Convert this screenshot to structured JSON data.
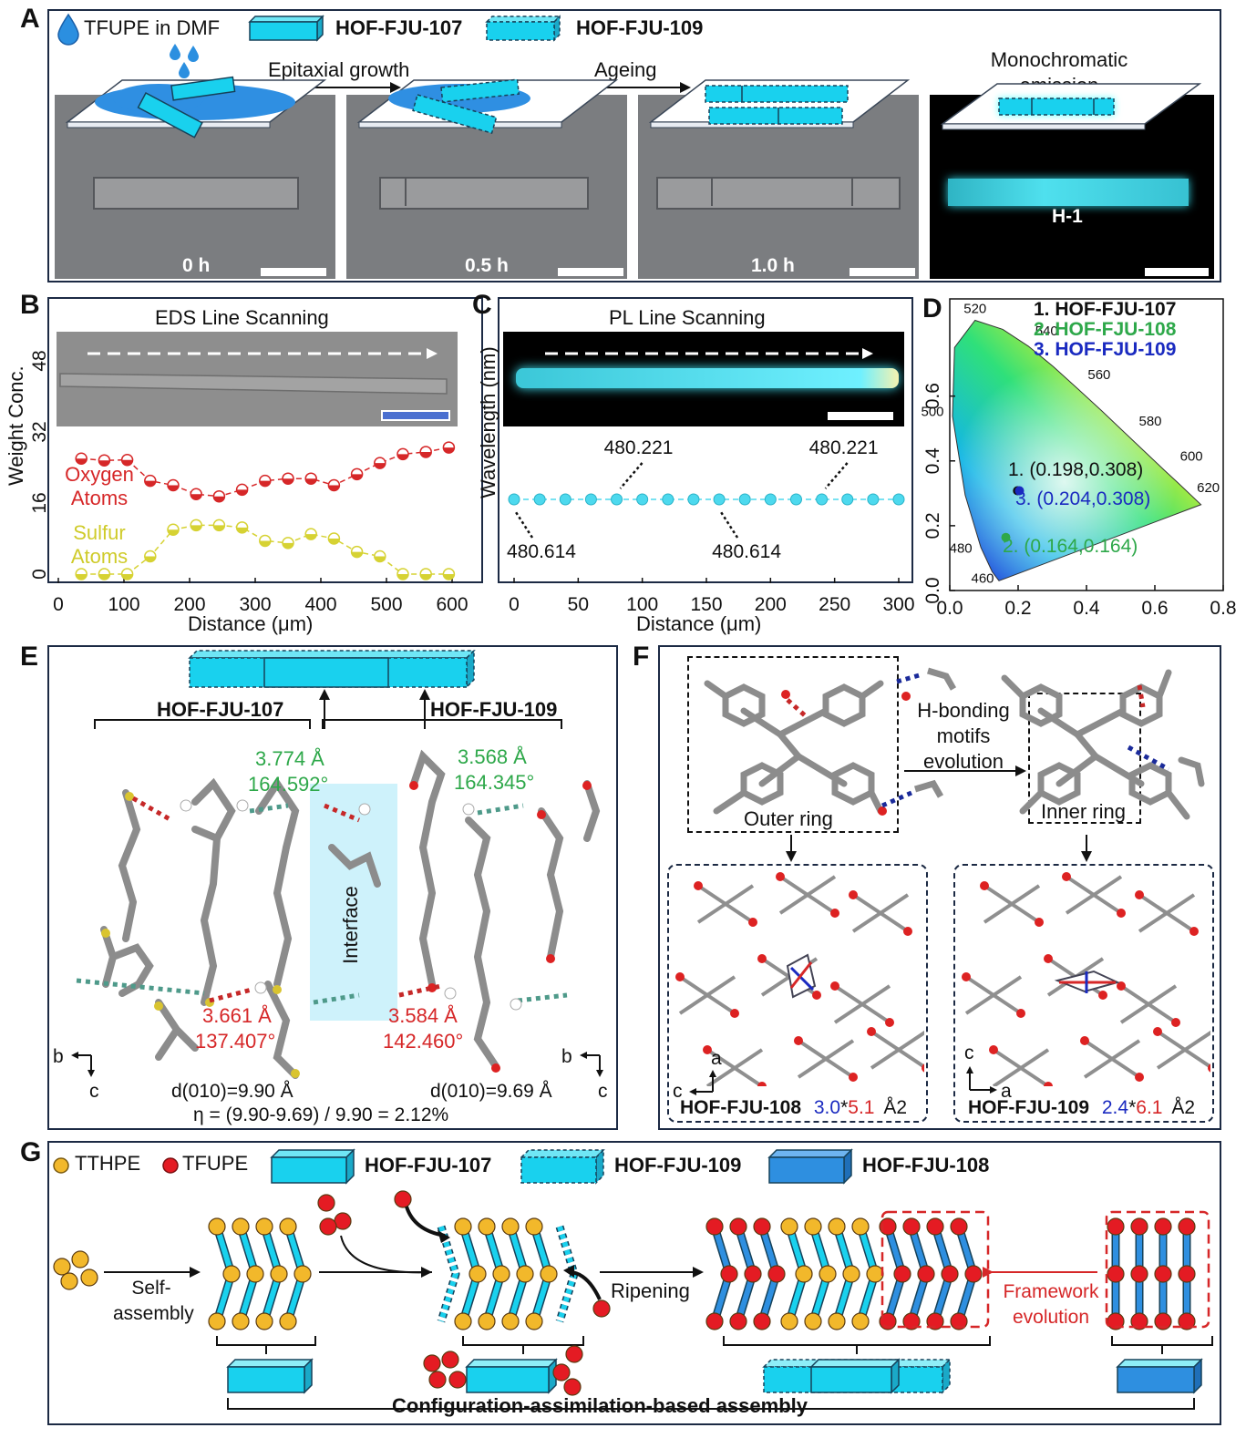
{
  "panels": {
    "A": {
      "label": "A",
      "legend": {
        "drop": "TFUPE in DMF",
        "crystal1": "HOF-FJU-107",
        "crystal2": "HOF-FJU-109"
      },
      "arrows": [
        "Epitaxial growth",
        "Ageing"
      ],
      "emission_label": "Monochromatic emission",
      "frames": [
        {
          "time": "0 h"
        },
        {
          "time": "0.5 h"
        },
        {
          "time": "1.0 h"
        },
        {
          "time": "H-1"
        }
      ]
    },
    "B": {
      "label": "B",
      "title": "EDS Line Scanning",
      "ylabel": "Weight Conc.",
      "xlabel": "Distance (μm)",
      "series_labels": [
        "Oxygen Atoms",
        "Sulfur Atoms"
      ]
    },
    "C": {
      "label": "C",
      "title": "PL Line Scanning",
      "ylabel": "Wavelength (nm)",
      "xlabel": "Distance (μm)",
      "annotations": [
        "480.221",
        "480.221",
        "480.614",
        "480.614"
      ]
    },
    "D": {
      "label": "D",
      "legend": [
        "1. HOF-FJU-107",
        "2. HOF-FJU-108",
        "3. HOF-FJU-109"
      ],
      "points": [
        "1. (0.198,0.308)",
        "3. (0.204,0.308)",
        "2. (0.164,0.164)"
      ]
    },
    "E": {
      "label": "E",
      "left_name": "HOF-FJU-107",
      "right_name": "HOF-FJU-109",
      "interface": "Interface",
      "green1": [
        "3.774 Å",
        "164.592°"
      ],
      "green2": [
        "3.568 Å",
        "164.345°"
      ],
      "red1": [
        "3.661 Å",
        "137.407°"
      ],
      "red2": [
        "3.584 Å",
        "142.460°"
      ],
      "d1": "d(010)=9.90 Å",
      "d2": "d(010)=9.69 Å",
      "eta": "η = (9.90-9.69) / 9.90 = 2.12%",
      "axes_left": [
        "b",
        "c"
      ],
      "axes_right": [
        "b",
        "c"
      ]
    },
    "F": {
      "label": "F",
      "motifs": "H-bonding motifs evolution",
      "outer": "Outer ring",
      "inner": "Inner ring",
      "left_caption": "HOF-FJU-108",
      "left_pore_a": "3.0",
      "left_pore_b": "5.1",
      "right_caption": "HOF-FJU-109",
      "right_pore_a": "2.4",
      "right_pore_b": "6.1",
      "unit": "Å2",
      "axes_left": [
        "a",
        "c"
      ],
      "axes_right": [
        "c",
        "a"
      ]
    },
    "G": {
      "label": "G",
      "legend": {
        "yellow": "TTHPE",
        "red": "TFUPE",
        "c107": "HOF-FJU-107",
        "c109": "HOF-FJU-109",
        "c108": "HOF-FJU-108"
      },
      "step1": "Self-assembly",
      "step2": "Ripening",
      "step3": "Framework evolution",
      "bottom": "Configuration-assimilation-based assembly"
    }
  },
  "chart_data": [
    {
      "type": "line",
      "panel": "B",
      "title": "EDS Line Scanning",
      "xlabel": "Distance (μm)",
      "ylabel": "Weight Conc.",
      "xlim": [
        0,
        600
      ],
      "ylim": [
        0,
        48
      ],
      "xticks": [
        0,
        100,
        200,
        300,
        400,
        500,
        600
      ],
      "yticks": [
        0,
        16,
        32,
        48
      ],
      "series": [
        {
          "name": "Oxygen Atoms",
          "color": "#d62728",
          "x": [
            35,
            70,
            105,
            140,
            175,
            210,
            245,
            280,
            315,
            350,
            385,
            420,
            455,
            490,
            525,
            560,
            595
          ],
          "y": [
            26,
            25.6,
            25.7,
            21,
            20,
            18,
            17.5,
            19,
            21,
            21.5,
            21.5,
            20,
            22.5,
            25,
            27,
            27.5,
            28.5
          ]
        },
        {
          "name": "Sulfur Atoms",
          "color": "#d6d233",
          "x": [
            35,
            70,
            105,
            140,
            175,
            210,
            245,
            280,
            315,
            350,
            385,
            420,
            455,
            490,
            525,
            560,
            595
          ],
          "y": [
            0,
            0,
            0,
            4,
            10,
            11,
            11,
            10.5,
            7.5,
            7,
            9,
            8,
            5,
            4,
            0,
            0,
            0
          ]
        }
      ]
    },
    {
      "type": "line",
      "panel": "C",
      "title": "PL Line Scanning",
      "xlabel": "Distance (μm)",
      "ylabel": "Wavelength (nm)",
      "xlim": [
        0,
        300
      ],
      "xticks": [
        0,
        50,
        100,
        150,
        200,
        250,
        300
      ],
      "series": [
        {
          "name": "PL",
          "color": "#4dd9ee",
          "x": [
            0,
            20,
            40,
            60,
            80,
            100,
            120,
            140,
            160,
            180,
            200,
            220,
            240,
            260,
            280,
            300
          ],
          "y": [
            480.614,
            480.5,
            480.5,
            480.5,
            480.221,
            480.5,
            480.5,
            480.5,
            480.614,
            480.5,
            480.5,
            480.5,
            480.221,
            480.5,
            480.5,
            480.5
          ]
        }
      ]
    },
    {
      "type": "scatter",
      "panel": "D",
      "xlim": [
        0,
        0.8
      ],
      "ylim": [
        0,
        0.9
      ],
      "xticks": [
        0.0,
        0.2,
        0.4,
        0.6,
        0.8
      ],
      "yticks": [
        0.0,
        0.2,
        0.4,
        0.6
      ],
      "locus_labels": [
        "460",
        "480",
        "500",
        "520",
        "540",
        "560",
        "580",
        "600",
        "620"
      ],
      "points": [
        {
          "name": "1. HOF-FJU-107",
          "x": 0.198,
          "y": 0.308,
          "color": "#111111"
        },
        {
          "name": "2. HOF-FJU-108",
          "x": 0.164,
          "y": 0.164,
          "color": "#2ea84a"
        },
        {
          "name": "3. HOF-FJU-109",
          "x": 0.204,
          "y": 0.308,
          "color": "#1a2ac0"
        }
      ]
    }
  ]
}
